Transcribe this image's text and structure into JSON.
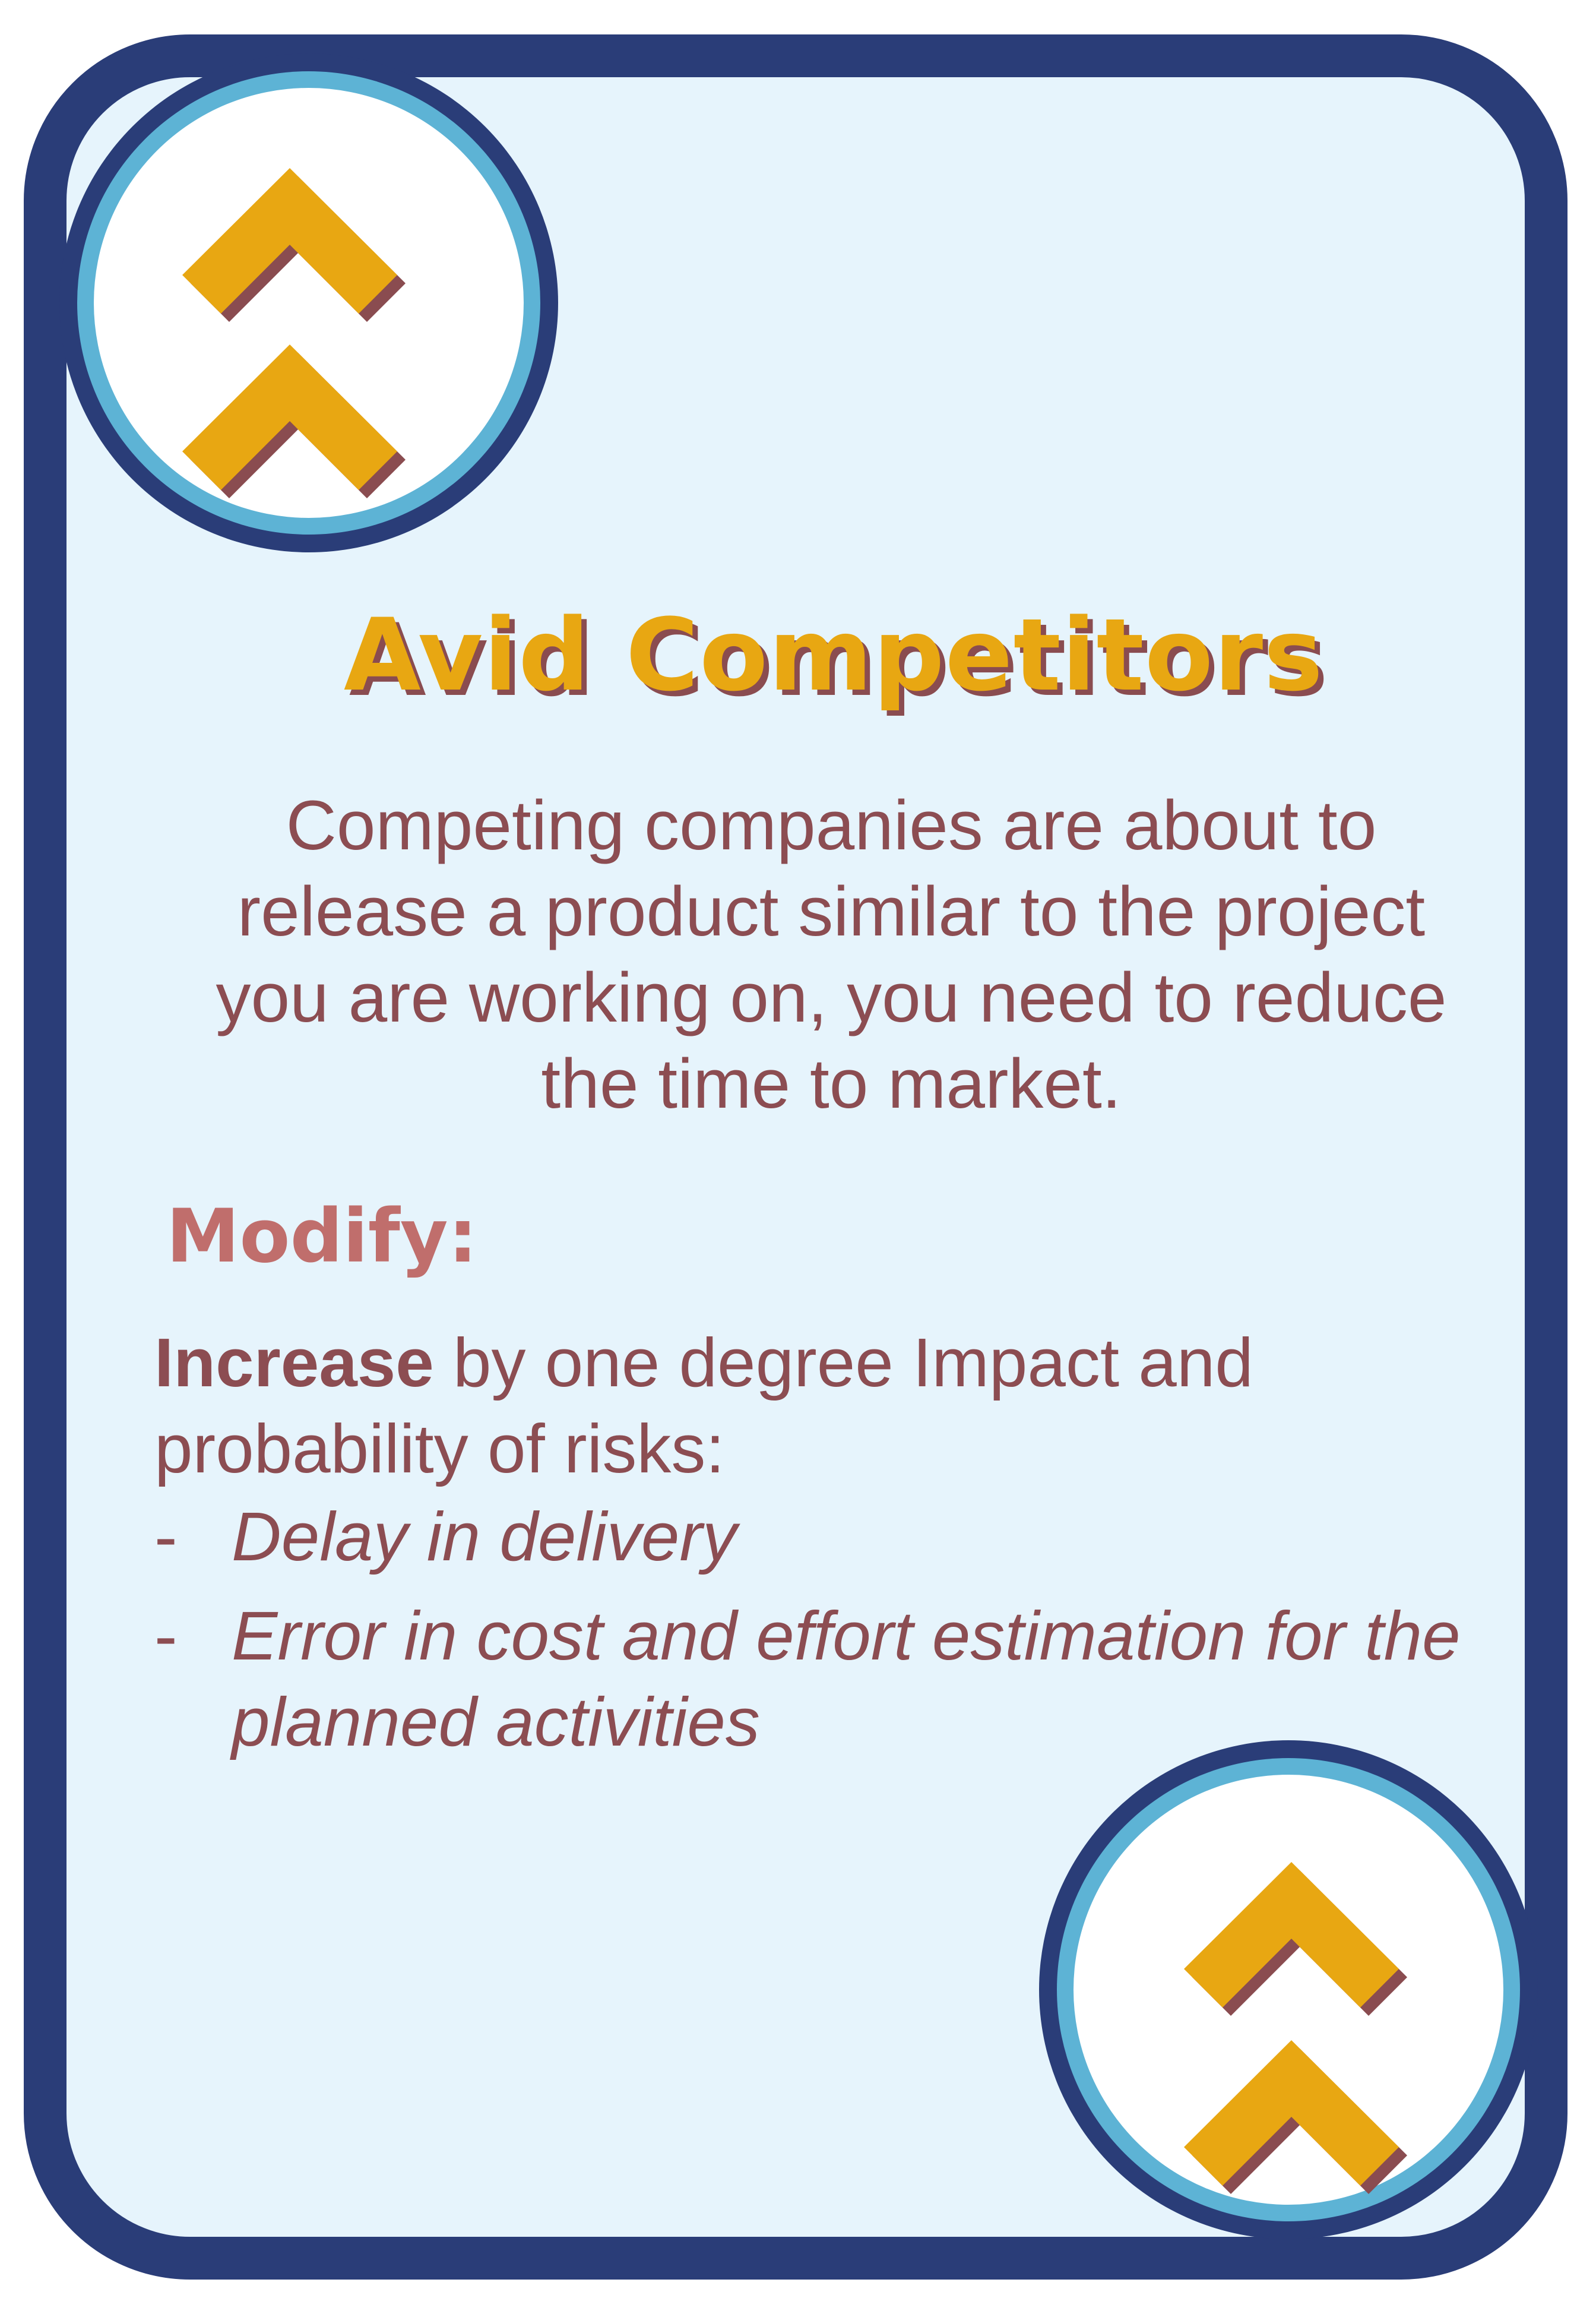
{
  "card": {
    "title": "Avid Competitors",
    "description": "Competing companies are about to release a product similar to the project you are working on, you need to reduce the time to market.",
    "modify_label": "Modify:",
    "effect": {
      "action": "Increase",
      "rest": " by one degree Impact and probability of risks:"
    },
    "risks": [
      {
        "bullet": "-",
        "text": "Delay in delivery"
      },
      {
        "bullet": "-",
        "text": "Error in cost and effort estimation for the planned activities"
      }
    ],
    "badge_icon": "double-chevron-up-icon"
  },
  "colors": {
    "border": "#2a3d78",
    "ring": "#5db3d5",
    "background": "#e6f4fc",
    "title": "#e8a712",
    "title_shadow": "#8a4c50",
    "text": "#8c4d52",
    "modify_label": "#c06e6c",
    "chevron": "#e8a712",
    "chevron_shadow": "#8a4c50"
  }
}
